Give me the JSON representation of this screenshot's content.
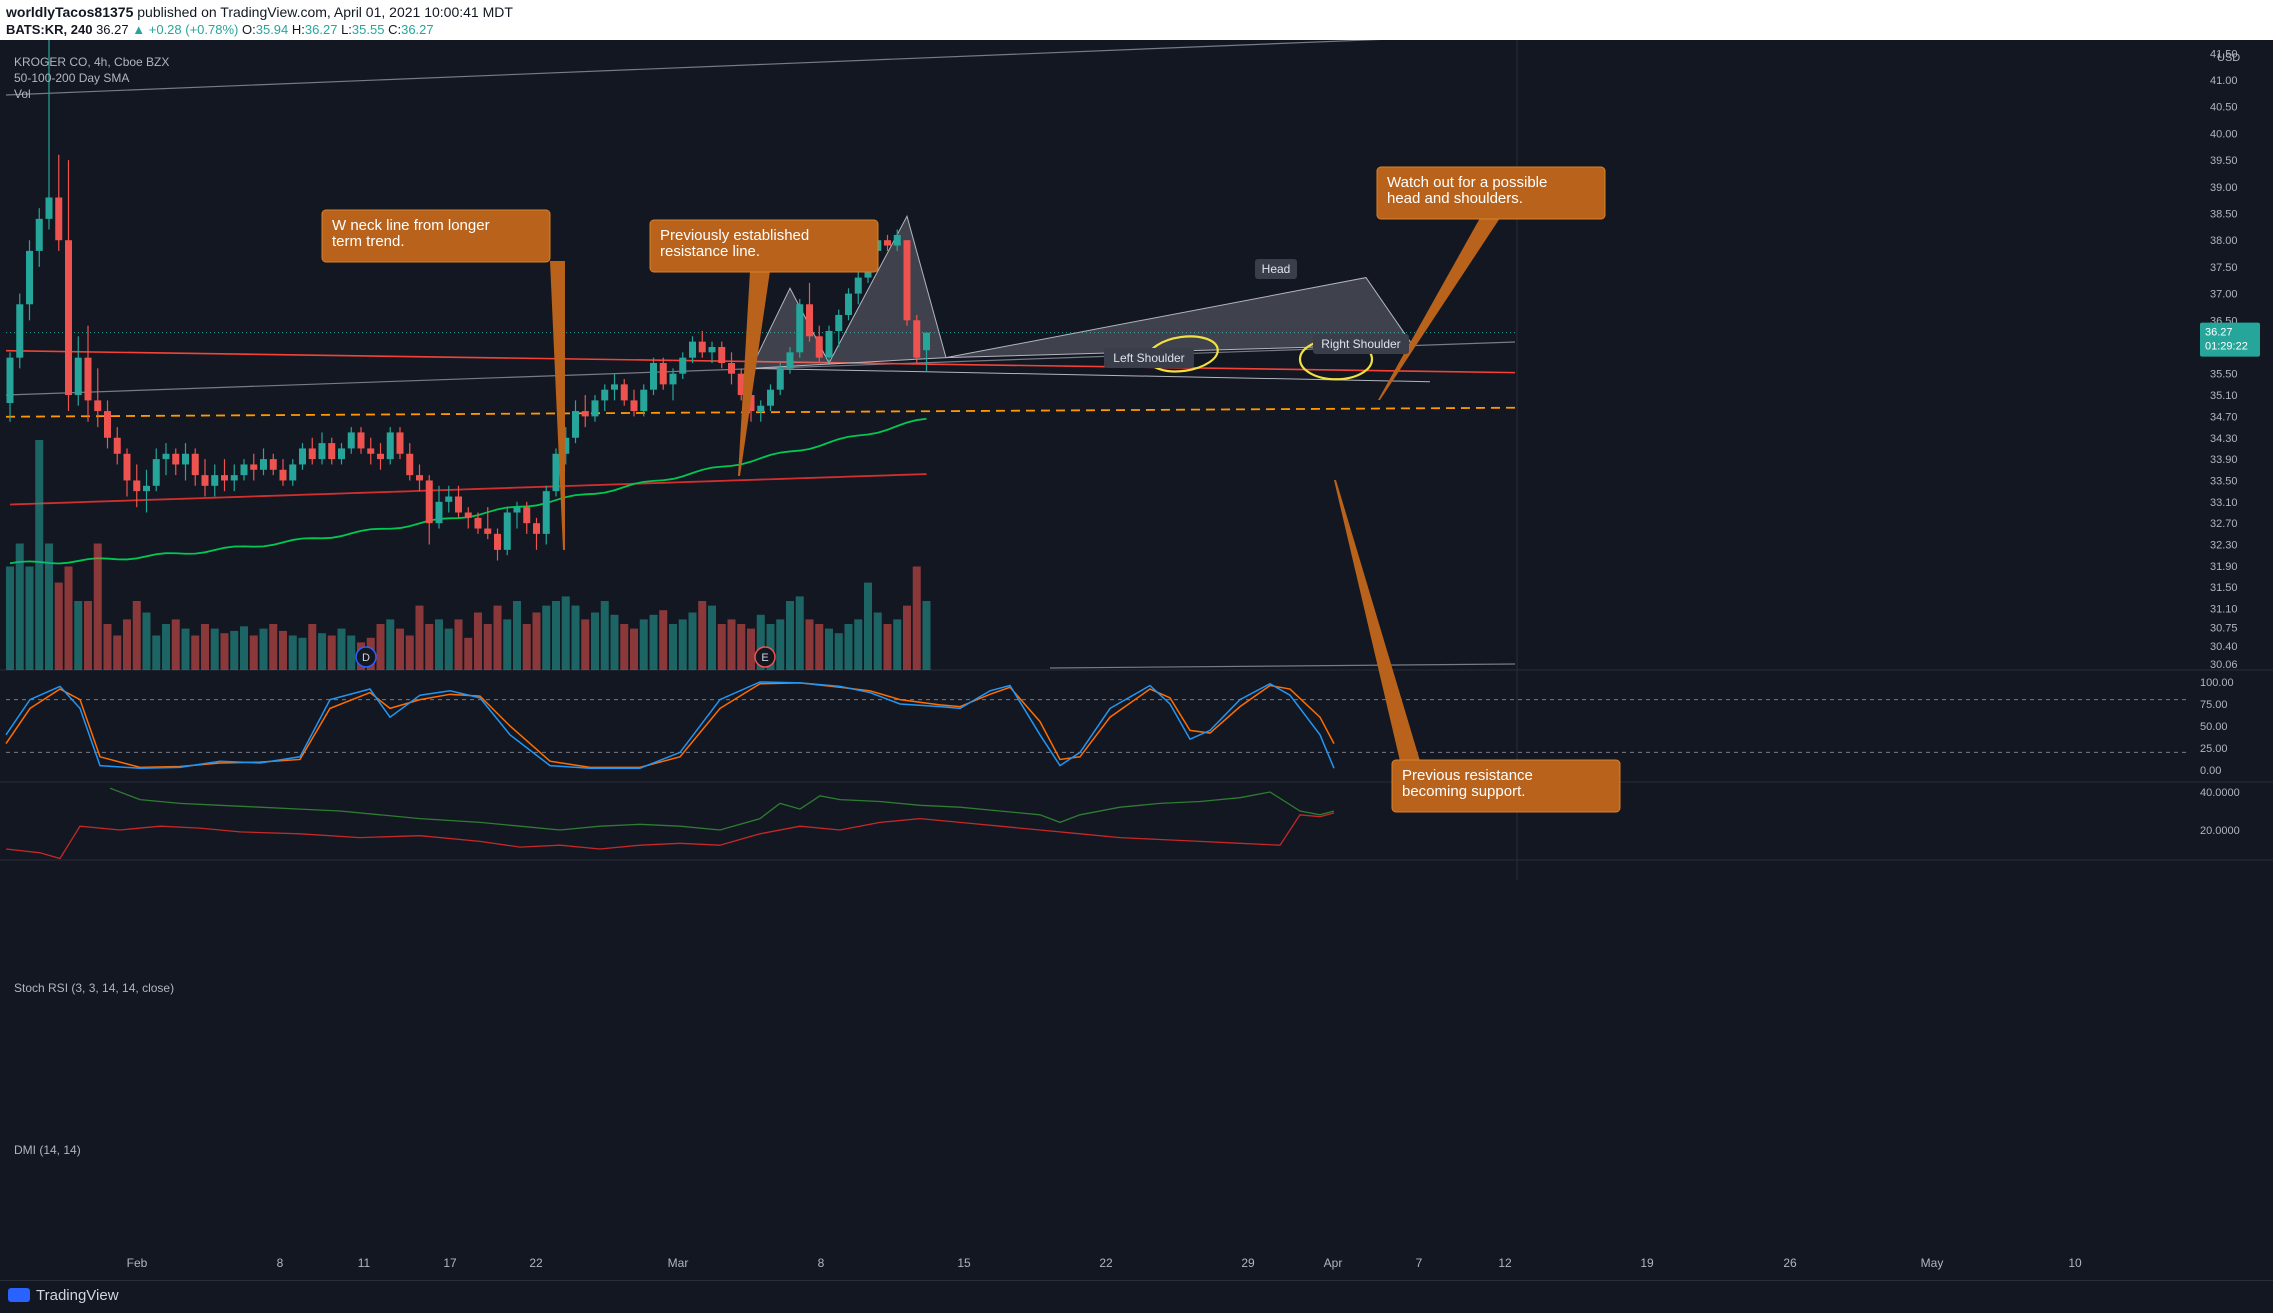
{
  "header": {
    "author": "worldlyTacos81375",
    "published_text": "published on TradingView.com, April 01, 2021 10:00:41 MDT",
    "symbol": "BATS:KR, 240",
    "last": "36.27",
    "change": "+0.28 (+0.78%)",
    "open_label": "O:",
    "open": "35.94",
    "high_label": "H:",
    "high": "36.27",
    "low_label": "L:",
    "low": "35.55",
    "close_label": "C:",
    "close": "36.27"
  },
  "legend": {
    "title": "KROGER CO, 4h, Cboe BZX",
    "sma": "50-100-200 Day SMA",
    "vol": "Vol"
  },
  "price_axis": {
    "currency": "USD",
    "ticks": [
      "41.50",
      "41.00",
      "40.50",
      "40.00",
      "39.50",
      "39.00",
      "38.50",
      "38.00",
      "37.50",
      "37.00",
      "36.50",
      "35.50",
      "35.10",
      "34.70",
      "34.30",
      "33.90",
      "33.50",
      "33.10",
      "32.70",
      "32.30",
      "31.90",
      "31.50",
      "31.10",
      "30.75",
      "30.40",
      "30.06"
    ],
    "last_price": "36.27",
    "countdown": "01:29:22"
  },
  "time_axis": [
    "Feb",
    "8",
    "11",
    "17",
    "22",
    "Mar",
    "8",
    "15",
    "22",
    "29",
    "Apr",
    "7",
    "12",
    "19",
    "26",
    "May",
    "10"
  ],
  "events": [
    "D",
    "E"
  ],
  "stoch": {
    "label": "Stoch RSI (3, 3, 14, 14, close)",
    "ticks": [
      "100.00",
      "75.00",
      "50.00",
      "25.00",
      "0.00"
    ]
  },
  "dmi": {
    "label": "DMI (14, 14)",
    "ticks": [
      "40.0000",
      "20.0000"
    ]
  },
  "annotations": {
    "w_neck": [
      "W neck line from longer",
      "term trend."
    ],
    "resistance": [
      "Previously established",
      "resistance line."
    ],
    "hs_watch": [
      "Watch out for a possible",
      "head and shoulders."
    ],
    "support": [
      "Previous resistance",
      "becoming support."
    ],
    "left_shoulder": "Left Shoulder",
    "head": "Head",
    "right_shoulder": "Right Shoulder"
  },
  "footer": {
    "logo": "TradingView"
  },
  "colors": {
    "background": "#131722",
    "up": "#26a69a",
    "down": "#ef5350",
    "sma50": "#00c853",
    "sma100": "#ff9800",
    "sma200": "#d32f2f",
    "callout": "#b8621c"
  },
  "chart_data": {
    "type": "candlestick",
    "title": "KROGER CO, 4h, Cboe BZX",
    "series_ohlc_note": "approximate 4h candles, Jan 27 – Apr 01 2021",
    "candles": [
      [
        34.95,
        35.9,
        34.6,
        35.8
      ],
      [
        35.8,
        37.0,
        35.6,
        36.8
      ],
      [
        36.8,
        38.0,
        36.5,
        37.8
      ],
      [
        37.8,
        38.6,
        37.5,
        38.4
      ],
      [
        38.4,
        41.9,
        38.2,
        38.8
      ],
      [
        38.8,
        39.6,
        37.8,
        38.0
      ],
      [
        38.0,
        39.5,
        34.8,
        35.1
      ],
      [
        35.1,
        36.2,
        34.9,
        35.8
      ],
      [
        35.8,
        36.4,
        34.6,
        35.0
      ],
      [
        35.0,
        35.6,
        34.5,
        34.8
      ],
      [
        34.8,
        35.0,
        34.1,
        34.3
      ],
      [
        34.3,
        34.5,
        33.8,
        34.0
      ],
      [
        34.0,
        34.1,
        33.2,
        33.5
      ],
      [
        33.5,
        33.8,
        33.0,
        33.3
      ],
      [
        33.3,
        33.7,
        32.9,
        33.4
      ],
      [
        33.4,
        34.1,
        33.3,
        33.9
      ],
      [
        33.9,
        34.2,
        33.6,
        34.0
      ],
      [
        34.0,
        34.1,
        33.6,
        33.8
      ],
      [
        33.8,
        34.2,
        33.5,
        34.0
      ],
      [
        34.0,
        34.1,
        33.4,
        33.6
      ],
      [
        33.6,
        33.9,
        33.2,
        33.4
      ],
      [
        33.4,
        33.8,
        33.2,
        33.6
      ],
      [
        33.6,
        33.9,
        33.3,
        33.5
      ],
      [
        33.5,
        33.8,
        33.3,
        33.6
      ],
      [
        33.6,
        33.9,
        33.5,
        33.8
      ],
      [
        33.8,
        34.0,
        33.5,
        33.7
      ],
      [
        33.7,
        34.1,
        33.6,
        33.9
      ],
      [
        33.9,
        34.0,
        33.6,
        33.7
      ],
      [
        33.7,
        33.9,
        33.4,
        33.5
      ],
      [
        33.5,
        33.9,
        33.4,
        33.8
      ],
      [
        33.8,
        34.2,
        33.7,
        34.1
      ],
      [
        34.1,
        34.3,
        33.8,
        33.9
      ],
      [
        33.9,
        34.4,
        33.8,
        34.2
      ],
      [
        34.2,
        34.3,
        33.8,
        33.9
      ],
      [
        33.9,
        34.2,
        33.8,
        34.1
      ],
      [
        34.1,
        34.5,
        34.0,
        34.4
      ],
      [
        34.4,
        34.5,
        34.0,
        34.1
      ],
      [
        34.1,
        34.3,
        33.8,
        34.0
      ],
      [
        34.0,
        34.2,
        33.7,
        33.9
      ],
      [
        33.9,
        34.5,
        33.8,
        34.4
      ],
      [
        34.4,
        34.5,
        33.9,
        34.0
      ],
      [
        34.0,
        34.2,
        33.5,
        33.6
      ],
      [
        33.6,
        33.8,
        33.3,
        33.5
      ],
      [
        33.5,
        33.6,
        32.3,
        32.7
      ],
      [
        32.7,
        33.4,
        32.6,
        33.1
      ],
      [
        33.1,
        33.4,
        32.9,
        33.2
      ],
      [
        33.2,
        33.4,
        32.8,
        32.9
      ],
      [
        32.9,
        33.0,
        32.6,
        32.8
      ],
      [
        32.8,
        32.9,
        32.5,
        32.6
      ],
      [
        32.6,
        33.0,
        32.4,
        32.5
      ],
      [
        32.5,
        32.6,
        32.0,
        32.2
      ],
      [
        32.2,
        33.0,
        32.1,
        32.9
      ],
      [
        32.9,
        33.1,
        32.6,
        33.0
      ],
      [
        33.0,
        33.1,
        32.5,
        32.7
      ],
      [
        32.7,
        32.8,
        32.2,
        32.5
      ],
      [
        32.5,
        33.4,
        32.3,
        33.3
      ],
      [
        33.3,
        34.1,
        33.2,
        34.0
      ],
      [
        34.0,
        34.5,
        33.8,
        34.3
      ],
      [
        34.3,
        35.0,
        34.2,
        34.8
      ],
      [
        34.8,
        35.1,
        34.5,
        34.7
      ],
      [
        34.7,
        35.1,
        34.6,
        35.0
      ],
      [
        35.0,
        35.3,
        34.8,
        35.2
      ],
      [
        35.2,
        35.5,
        35.0,
        35.3
      ],
      [
        35.3,
        35.4,
        34.9,
        35.0
      ],
      [
        35.0,
        35.2,
        34.7,
        34.8
      ],
      [
        34.8,
        35.3,
        34.7,
        35.2
      ],
      [
        35.2,
        35.8,
        35.1,
        35.7
      ],
      [
        35.7,
        35.8,
        35.2,
        35.3
      ],
      [
        35.3,
        35.6,
        35.0,
        35.5
      ],
      [
        35.5,
        35.9,
        35.4,
        35.8
      ],
      [
        35.8,
        36.2,
        35.7,
        36.1
      ],
      [
        36.1,
        36.3,
        35.8,
        35.9
      ],
      [
        35.9,
        36.1,
        35.7,
        36.0
      ],
      [
        36.0,
        36.1,
        35.6,
        35.7
      ],
      [
        35.7,
        35.9,
        35.3,
        35.5
      ],
      [
        35.5,
        35.6,
        35.0,
        35.1
      ],
      [
        35.1,
        35.2,
        34.6,
        34.8
      ],
      [
        34.8,
        35.0,
        34.6,
        34.9
      ],
      [
        34.9,
        35.3,
        34.8,
        35.2
      ],
      [
        35.2,
        35.7,
        35.1,
        35.6
      ],
      [
        35.6,
        36.0,
        35.5,
        35.9
      ],
      [
        35.9,
        36.9,
        35.8,
        36.8
      ],
      [
        36.8,
        37.2,
        36.1,
        36.2
      ],
      [
        36.2,
        36.4,
        35.7,
        35.8
      ],
      [
        35.8,
        36.4,
        35.7,
        36.3
      ],
      [
        36.3,
        36.7,
        36.0,
        36.6
      ],
      [
        36.6,
        37.1,
        36.5,
        37.0
      ],
      [
        37.0,
        37.4,
        36.8,
        37.3
      ],
      [
        37.3,
        37.9,
        37.2,
        37.8
      ],
      [
        37.8,
        38.1,
        37.6,
        38.0
      ],
      [
        38.0,
        38.1,
        37.8,
        37.9
      ],
      [
        37.9,
        38.2,
        37.8,
        38.1
      ],
      [
        38.0,
        38.0,
        36.4,
        36.5
      ],
      [
        36.5,
        36.6,
        35.7,
        35.8
      ],
      [
        35.94,
        36.27,
        35.55,
        36.27
      ]
    ],
    "volume_relative": [
      0.45,
      0.55,
      0.45,
      1.0,
      0.55,
      0.38,
      0.45,
      0.3,
      0.3,
      0.55,
      0.2,
      0.15,
      0.22,
      0.3,
      0.25,
      0.15,
      0.2,
      0.22,
      0.18,
      0.15,
      0.2,
      0.18,
      0.16,
      0.17,
      0.19,
      0.15,
      0.18,
      0.2,
      0.17,
      0.15,
      0.14,
      0.2,
      0.16,
      0.15,
      0.18,
      0.15,
      0.12,
      0.14,
      0.2,
      0.22,
      0.18,
      0.15,
      0.28,
      0.2,
      0.22,
      0.18,
      0.22,
      0.14,
      0.25,
      0.2,
      0.28,
      0.22,
      0.3,
      0.2,
      0.25,
      0.28,
      0.3,
      0.32,
      0.28,
      0.22,
      0.25,
      0.3,
      0.24,
      0.2,
      0.18,
      0.22,
      0.24,
      0.26,
      0.2,
      0.22,
      0.25,
      0.3,
      0.28,
      0.2,
      0.22,
      0.2,
      0.18,
      0.24,
      0.2,
      0.22,
      0.3,
      0.32,
      0.22,
      0.2,
      0.18,
      0.16,
      0.2,
      0.22,
      0.38,
      0.25,
      0.2,
      0.22,
      0.28,
      0.45,
      0.3
    ],
    "sma50_start": 31.95,
    "sma50_end": 34.65,
    "sma100": 34.75,
    "sma200_start": 33.05,
    "sma200_end": 33.62,
    "resistance_start": 35.93,
    "resistance_end": 35.52,
    "ylim": [
      29.95,
      41.75
    ]
  }
}
